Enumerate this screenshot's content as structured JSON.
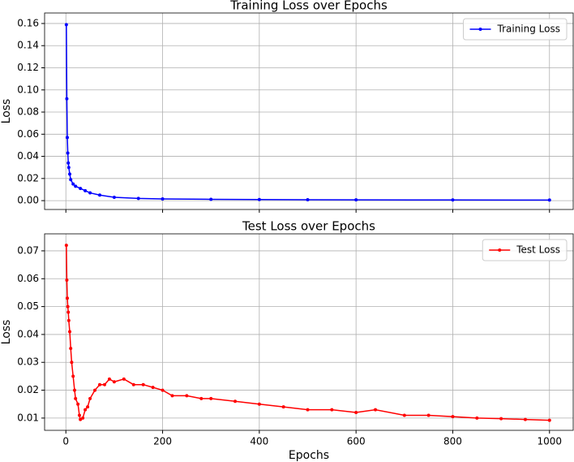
{
  "chart_data": [
    {
      "type": "line",
      "title": "Training Loss over Epochs",
      "ylabel": "Loss",
      "xlim": [
        -44,
        1049
      ],
      "ylim": [
        -0.008,
        0.1695
      ],
      "xticks": [
        0,
        200,
        400,
        600,
        800,
        1000
      ],
      "xtick_labels": false,
      "yticks": [
        {
          "value": 0,
          "label": "0.00"
        },
        0.02,
        0.04,
        0.06,
        0.08,
        {
          "value": 0.1,
          "label": "0.10"
        },
        0.12,
        0.14,
        0.16
      ],
      "grid": true,
      "legend": "upper right",
      "series": [
        {
          "name": "Training Loss",
          "color": "#0000ff",
          "x": [
            1,
            2,
            3,
            4,
            5,
            6,
            8,
            10,
            15,
            20,
            30,
            40,
            50,
            70,
            100,
            150,
            200,
            300,
            400,
            500,
            600,
            800,
            1000
          ],
          "values": [
            0.159,
            0.092,
            0.057,
            0.043,
            0.034,
            0.03,
            0.024,
            0.019,
            0.015,
            0.013,
            0.011,
            0.009,
            0.007,
            0.005,
            0.003,
            0.002,
            0.0015,
            0.0012,
            0.001,
            0.0008,
            0.0007,
            0.0006,
            0.0005
          ]
        }
      ]
    },
    {
      "type": "line",
      "title": "Test Loss over Epochs",
      "xlabel": "Epochs",
      "ylabel": "Loss",
      "xlim": [
        -44,
        1049
      ],
      "ylim": [
        0.0056,
        0.0761
      ],
      "xticks": [
        0,
        200,
        400,
        600,
        800,
        1000
      ],
      "xtick_labels": true,
      "yticks": [
        0.01,
        0.02,
        0.03,
        0.04,
        0.05,
        0.06,
        0.07
      ],
      "grid": true,
      "legend": "upper right",
      "series": [
        {
          "name": "Test Loss",
          "color": "#ff0000",
          "x": [
            1,
            2,
            3,
            4,
            5,
            6,
            8,
            10,
            12,
            15,
            18,
            20,
            25,
            28,
            30,
            35,
            40,
            45,
            50,
            60,
            70,
            80,
            90,
            100,
            120,
            140,
            160,
            180,
            200,
            220,
            250,
            280,
            300,
            350,
            400,
            450,
            500,
            550,
            600,
            640,
            700,
            750,
            800,
            850,
            900,
            950,
            1000
          ],
          "values": [
            0.072,
            0.0595,
            0.053,
            0.05,
            0.048,
            0.045,
            0.041,
            0.035,
            0.03,
            0.025,
            0.02,
            0.017,
            0.015,
            0.011,
            0.0095,
            0.01,
            0.013,
            0.014,
            0.017,
            0.02,
            0.022,
            0.022,
            0.024,
            0.023,
            0.024,
            0.022,
            0.022,
            0.021,
            0.02,
            0.018,
            0.018,
            0.017,
            0.017,
            0.016,
            0.015,
            0.014,
            0.013,
            0.013,
            0.012,
            0.013,
            0.011,
            0.011,
            0.0105,
            0.01,
            0.0098,
            0.0095,
            0.0092
          ]
        }
      ]
    }
  ]
}
